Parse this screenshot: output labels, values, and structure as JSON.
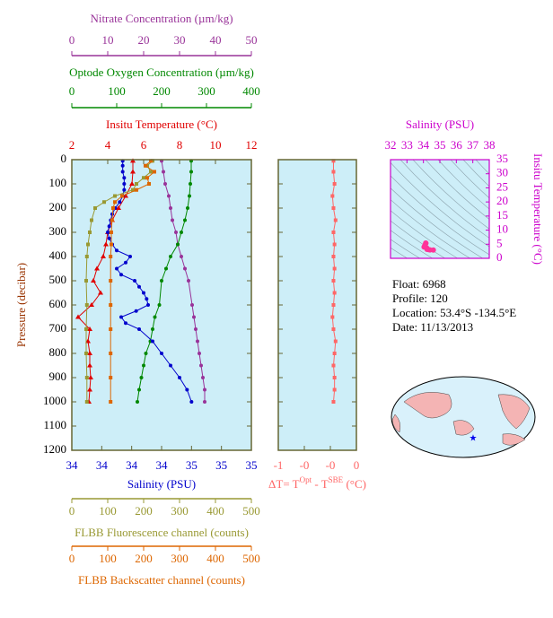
{
  "chart_data": [
    {
      "type": "profile",
      "ylabel": "Pressure (decibar)",
      "ylim": [
        0,
        1200
      ],
      "y_direction": "down",
      "yticks": [
        0,
        100,
        200,
        300,
        400,
        500,
        600,
        700,
        800,
        900,
        1000,
        1100,
        1200
      ],
      "background": "#cdeef8",
      "frame_color": "#666633",
      "axes": [
        {
          "label": "Nitrate Concentration (µm/kg)",
          "side": "top",
          "color": "#993399",
          "marker": "circle",
          "xlim": [
            0,
            50
          ],
          "xticks": [
            0,
            10,
            20,
            30,
            40,
            50
          ],
          "pressure": [
            5,
            50,
            100,
            150,
            200,
            250,
            300,
            350,
            400,
            450,
            500,
            600,
            650,
            700,
            750,
            800,
            850,
            900,
            950,
            1000
          ],
          "values": [
            25,
            25.5,
            26,
            27,
            27.5,
            28,
            29,
            29.5,
            30.5,
            31.5,
            32.5,
            33.5,
            34,
            34.5,
            35,
            35.5,
            36,
            36.5,
            37,
            37
          ]
        },
        {
          "label": "Optode Oxygen Concentration (µm/kg)",
          "side": "top",
          "color": "#008800",
          "marker": "circle",
          "xlim": [
            0,
            400
          ],
          "xticks": [
            0,
            100,
            200,
            300,
            400
          ],
          "pressure": [
            5,
            50,
            100,
            150,
            200,
            250,
            300,
            350,
            400,
            450,
            500,
            600,
            650,
            700,
            750,
            800,
            850,
            900,
            950,
            1000
          ],
          "values": [
            266,
            266,
            264,
            262,
            258,
            252,
            244,
            236,
            220,
            210,
            200,
            195,
            185,
            180,
            175,
            165,
            160,
            155,
            150,
            146
          ]
        },
        {
          "label": "Insitu Temperature (°C)",
          "side": "top",
          "color": "#e00000",
          "marker": "triangle",
          "xlim": [
            2,
            12
          ],
          "xticks": [
            2,
            4,
            6,
            8,
            10,
            12
          ],
          "pressure": [
            5,
            50,
            100,
            150,
            200,
            250,
            300,
            350,
            400,
            450,
            500,
            550,
            600,
            650,
            700,
            750,
            800,
            850,
            900,
            950,
            1000
          ],
          "values": [
            5.4,
            5.4,
            5.35,
            5.0,
            4.6,
            4.25,
            4.0,
            3.9,
            3.75,
            3.4,
            3.2,
            3.6,
            3.1,
            2.35,
            3.0,
            2.9,
            3.0,
            3.0,
            3.05,
            3.0,
            2.95
          ]
        },
        {
          "label": "Salinity (PSU)",
          "side": "bottom",
          "color": "#0000cc",
          "marker": "circle",
          "xlim": [
            33.8,
            35.0
          ],
          "xticks": [
            {
              "value": 33.8,
              "label": "34"
            },
            {
              "value": 34.0,
              "label": "34"
            },
            {
              "value": 34.2,
              "label": "34"
            },
            {
              "value": 34.4,
              "label": "34"
            },
            {
              "value": 34.6,
              "label": "35"
            },
            {
              "value": 34.8,
              "label": "35"
            },
            {
              "value": 35.0,
              "label": "35"
            }
          ],
          "pressure": [
            5,
            25,
            50,
            75,
            100,
            125,
            150,
            175,
            200,
            225,
            250,
            275,
            300,
            325,
            350,
            375,
            400,
            425,
            450,
            475,
            500,
            525,
            550,
            575,
            600,
            625,
            650,
            675,
            700,
            750,
            800,
            850,
            900,
            950,
            1000
          ],
          "values": [
            34.14,
            34.14,
            34.14,
            34.15,
            34.15,
            34.15,
            34.14,
            34.12,
            34.09,
            34.07,
            34.06,
            34.05,
            34.04,
            34.05,
            34.07,
            34.1,
            34.19,
            34.16,
            34.1,
            34.13,
            34.22,
            34.25,
            34.28,
            34.3,
            34.31,
            34.23,
            34.13,
            34.16,
            34.25,
            34.34,
            34.4,
            34.46,
            34.52,
            34.57,
            34.6
          ]
        },
        {
          "label": "FLBB Fluorescence channel (counts)",
          "side": "bottom",
          "color": "#999933",
          "marker": "square",
          "xlim": [
            0,
            500
          ],
          "xticks": [
            0,
            100,
            200,
            300,
            400,
            500
          ],
          "pressure": [
            5,
            25,
            50,
            75,
            100,
            125,
            150,
            175,
            200,
            250,
            300,
            350,
            400,
            500,
            600,
            700,
            800,
            900,
            1000
          ],
          "values": [
            225,
            210,
            220,
            200,
            180,
            170,
            120,
            90,
            65,
            55,
            50,
            45,
            42,
            40,
            42,
            40,
            40,
            42,
            42
          ]
        },
        {
          "label": "FLBB Backscatter channel (counts)",
          "side": "bottom",
          "color": "#dd6600",
          "marker": "square",
          "xlim": [
            0,
            500
          ],
          "xticks": [
            0,
            100,
            200,
            300,
            400,
            500
          ],
          "pressure": [
            5,
            25,
            50,
            75,
            100,
            125,
            150,
            175,
            200,
            250,
            300,
            350,
            400,
            500,
            600,
            700,
            800,
            900,
            1000
          ],
          "values": [
            220,
            205,
            230,
            210,
            215,
            180,
            140,
            120,
            115,
            112,
            110,
            110,
            108,
            108,
            108,
            108,
            108,
            108,
            108
          ]
        }
      ]
    },
    {
      "type": "profile",
      "ylim": [
        0,
        1200
      ],
      "y_direction": "down",
      "yticks": [
        0,
        100,
        200,
        300,
        400,
        500,
        600,
        700,
        800,
        900,
        1000,
        1100,
        1200
      ],
      "background": "#cdeef8",
      "frame_color": "#666633",
      "axes": [
        {
          "label": [
            "ΔT= T",
            "Opt",
            " - T",
            "SBE",
            " (°C)"
          ],
          "side": "bottom",
          "color": "#ff6666",
          "marker": "square",
          "xlim": [
            -0.75,
            0
          ],
          "xticks": [
            {
              "value": -0.75,
              "label": "-1"
            },
            {
              "value": -0.5,
              "label": "-0"
            },
            {
              "value": -0.25,
              "label": "-0"
            },
            0
          ],
          "pressure": [
            5,
            50,
            100,
            150,
            200,
            250,
            300,
            350,
            400,
            450,
            500,
            550,
            600,
            650,
            700,
            750,
            800,
            850,
            900,
            950,
            1000
          ],
          "values": [
            -0.22,
            -0.22,
            -0.21,
            -0.23,
            -0.22,
            -0.2,
            -0.22,
            -0.21,
            -0.22,
            -0.21,
            -0.22,
            -0.21,
            -0.22,
            -0.23,
            -0.22,
            -0.2,
            -0.21,
            -0.22,
            -0.21,
            -0.21,
            -0.22
          ]
        }
      ]
    },
    {
      "type": "scatter",
      "title": "Salinity (PSU)",
      "ylabel": "Insitu Temperature (°C)",
      "color": "#ff3399",
      "axis_color": "#cc00cc",
      "xlim": [
        32,
        38
      ],
      "xticks": [
        32,
        33,
        34,
        35,
        36,
        37,
        38
      ],
      "ylim": [
        0,
        35
      ],
      "yticks": [
        0,
        5,
        10,
        15,
        20,
        25,
        30,
        35
      ],
      "background": "#cdeef8",
      "x": [
        34.14,
        34.15,
        34.09,
        34.04,
        34.19,
        34.31,
        34.4,
        34.6,
        34.22,
        34.1
      ],
      "y": [
        5.4,
        5.35,
        4.6,
        4.0,
        3.75,
        3.1,
        3.0,
        2.95,
        3.2,
        4.25
      ]
    }
  ],
  "info": [
    "Float:  6968",
    "Profile:  120",
    "Location:  53.4°S  -134.5°E",
    "Date:  11/13/2013"
  ]
}
